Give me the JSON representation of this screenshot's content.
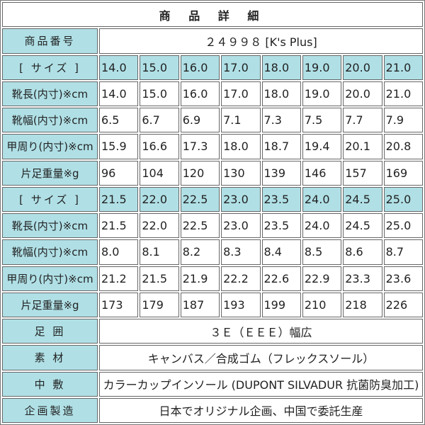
{
  "title": "商 品 詳 細",
  "product_number_label": "商品番号",
  "product_number": "２４９９８ [K's Plus]",
  "blocks": [
    {
      "size_label": "[ サイズ ]",
      "sizes": [
        "14.0",
        "15.0",
        "16.0",
        "17.0",
        "18.0",
        "19.0",
        "20.0",
        "21.0"
      ],
      "rows": [
        {
          "label": "靴長(内寸)※cm",
          "values": [
            "14.0",
            "15.0",
            "16.0",
            "17.0",
            "18.0",
            "19.0",
            "20.0",
            "21.0"
          ]
        },
        {
          "label": "靴幅(内寸)※cm",
          "values": [
            "6.5",
            "6.7",
            "6.9",
            "7.1",
            "7.3",
            "7.5",
            "7.7",
            "7.9"
          ]
        },
        {
          "label": "甲周り(内寸)※cm",
          "values": [
            "15.9",
            "16.6",
            "17.3",
            "18.0",
            "18.7",
            "19.4",
            "20.1",
            "20.8"
          ]
        },
        {
          "label": "片足重量※g",
          "values": [
            "96",
            "104",
            "120",
            "130",
            "139",
            "146",
            "157",
            "169"
          ]
        }
      ]
    },
    {
      "size_label": "[ サイズ ]",
      "sizes": [
        "21.5",
        "22.0",
        "22.5",
        "23.0",
        "23.5",
        "24.0",
        "24.5",
        "25.0"
      ],
      "rows": [
        {
          "label": "靴長(内寸)※cm",
          "values": [
            "21.5",
            "22.0",
            "22.5",
            "23.0",
            "23.5",
            "24.0",
            "24.5",
            "25.0"
          ]
        },
        {
          "label": "靴幅(内寸)※cm",
          "values": [
            "8.0",
            "8.1",
            "8.2",
            "8.3",
            "8.4",
            "8.5",
            "8.6",
            "8.7"
          ]
        },
        {
          "label": "甲周り(内寸)※cm",
          "values": [
            "21.2",
            "21.5",
            "21.9",
            "22.2",
            "22.6",
            "22.9",
            "23.3",
            "23.6"
          ]
        },
        {
          "label": "片足重量※g",
          "values": [
            "173",
            "179",
            "187",
            "193",
            "199",
            "210",
            "218",
            "226"
          ]
        }
      ]
    }
  ],
  "details": [
    {
      "label": "足 囲",
      "value": "３Ｅ（ＥＥＥ）幅広"
    },
    {
      "label": "素 材",
      "value": "キャンバス／合成ゴム（フレックスソール）"
    },
    {
      "label": "中 敷",
      "value": "カラーカップインソール (DUPONT SILVADUR 抗菌防臭加工)"
    },
    {
      "label": "企画製造",
      "value": "日本でオリジナル企画、中国で委託生産"
    }
  ],
  "colors": {
    "label_bg": "#b0e0e6",
    "border": "#666666"
  }
}
